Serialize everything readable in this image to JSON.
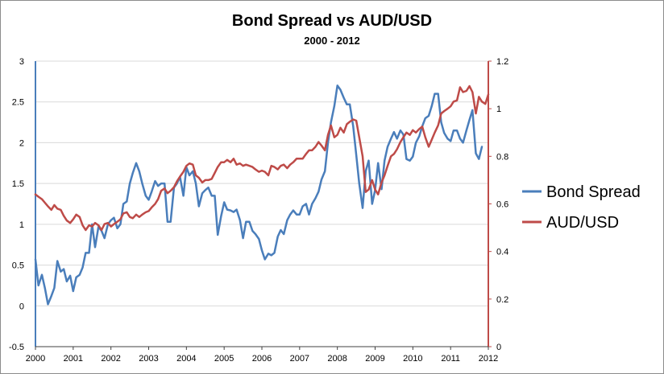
{
  "chart_data": {
    "type": "line",
    "title": "Bond Spread vs AUD/USD",
    "subtitle": "2000 - 2012",
    "x_ticks": [
      "2000",
      "2001",
      "2002",
      "2003",
      "2004",
      "2005",
      "2006",
      "2007",
      "2008",
      "2009",
      "2010",
      "2011",
      "2012"
    ],
    "xlim": [
      2000,
      2012
    ],
    "y_left": {
      "lim": [
        -0.5,
        3
      ],
      "ticks": [
        "-0.5",
        "0",
        "0.5",
        "1",
        "1.5",
        "2",
        "2.5",
        "3"
      ],
      "color": "#4a7ebb"
    },
    "y_right": {
      "lim": [
        0,
        1.2
      ],
      "ticks": [
        "0",
        "0.2",
        "0.4",
        "0.6",
        "0.8",
        "1",
        "1.2"
      ],
      "color": "#be4b48"
    },
    "grid": "horizontal",
    "legend_position": "right",
    "series": [
      {
        "name": "Bond Spread",
        "axis": "left",
        "color": "#4a7ebb",
        "points": [
          [
            2000.0,
            0.57
          ],
          [
            2000.08,
            0.25
          ],
          [
            2000.17,
            0.38
          ],
          [
            2000.25,
            0.22
          ],
          [
            2000.33,
            0.02
          ],
          [
            2000.42,
            0.12
          ],
          [
            2000.5,
            0.22
          ],
          [
            2000.58,
            0.55
          ],
          [
            2000.67,
            0.42
          ],
          [
            2000.75,
            0.45
          ],
          [
            2000.83,
            0.3
          ],
          [
            2000.92,
            0.37
          ],
          [
            2001.0,
            0.18
          ],
          [
            2001.08,
            0.35
          ],
          [
            2001.17,
            0.38
          ],
          [
            2001.25,
            0.47
          ],
          [
            2001.33,
            0.65
          ],
          [
            2001.42,
            0.65
          ],
          [
            2001.5,
            1.0
          ],
          [
            2001.58,
            0.72
          ],
          [
            2001.67,
            0.97
          ],
          [
            2001.75,
            0.92
          ],
          [
            2001.83,
            0.83
          ],
          [
            2001.92,
            1.0
          ],
          [
            2002.0,
            1.05
          ],
          [
            2002.08,
            1.08
          ],
          [
            2002.17,
            0.95
          ],
          [
            2002.25,
            1.0
          ],
          [
            2002.33,
            1.25
          ],
          [
            2002.42,
            1.28
          ],
          [
            2002.5,
            1.5
          ],
          [
            2002.58,
            1.63
          ],
          [
            2002.67,
            1.75
          ],
          [
            2002.75,
            1.65
          ],
          [
            2002.83,
            1.5
          ],
          [
            2002.92,
            1.35
          ],
          [
            2003.0,
            1.3
          ],
          [
            2003.08,
            1.4
          ],
          [
            2003.17,
            1.53
          ],
          [
            2003.25,
            1.47
          ],
          [
            2003.33,
            1.5
          ],
          [
            2003.42,
            1.5
          ],
          [
            2003.5,
            1.03
          ],
          [
            2003.58,
            1.03
          ],
          [
            2003.67,
            1.45
          ],
          [
            2003.75,
            1.5
          ],
          [
            2003.83,
            1.58
          ],
          [
            2003.92,
            1.35
          ],
          [
            2004.0,
            1.7
          ],
          [
            2004.08,
            1.6
          ],
          [
            2004.17,
            1.65
          ],
          [
            2004.25,
            1.5
          ],
          [
            2004.33,
            1.22
          ],
          [
            2004.42,
            1.38
          ],
          [
            2004.5,
            1.42
          ],
          [
            2004.58,
            1.45
          ],
          [
            2004.67,
            1.35
          ],
          [
            2004.75,
            1.35
          ],
          [
            2004.83,
            0.87
          ],
          [
            2004.92,
            1.1
          ],
          [
            2005.0,
            1.27
          ],
          [
            2005.08,
            1.18
          ],
          [
            2005.17,
            1.17
          ],
          [
            2005.25,
            1.15
          ],
          [
            2005.33,
            1.18
          ],
          [
            2005.42,
            1.05
          ],
          [
            2005.5,
            0.83
          ],
          [
            2005.58,
            1.03
          ],
          [
            2005.67,
            1.03
          ],
          [
            2005.75,
            0.92
          ],
          [
            2005.83,
            0.88
          ],
          [
            2005.92,
            0.82
          ],
          [
            2006.0,
            0.68
          ],
          [
            2006.08,
            0.57
          ],
          [
            2006.17,
            0.64
          ],
          [
            2006.25,
            0.62
          ],
          [
            2006.33,
            0.65
          ],
          [
            2006.42,
            0.85
          ],
          [
            2006.5,
            0.93
          ],
          [
            2006.58,
            0.88
          ],
          [
            2006.67,
            1.05
          ],
          [
            2006.75,
            1.12
          ],
          [
            2006.83,
            1.17
          ],
          [
            2006.92,
            1.12
          ],
          [
            2007.0,
            1.12
          ],
          [
            2007.08,
            1.22
          ],
          [
            2007.17,
            1.25
          ],
          [
            2007.25,
            1.12
          ],
          [
            2007.33,
            1.25
          ],
          [
            2007.42,
            1.32
          ],
          [
            2007.5,
            1.4
          ],
          [
            2007.58,
            1.55
          ],
          [
            2007.67,
            1.65
          ],
          [
            2007.75,
            2.0
          ],
          [
            2007.83,
            2.25
          ],
          [
            2007.92,
            2.45
          ],
          [
            2008.0,
            2.7
          ],
          [
            2008.08,
            2.65
          ],
          [
            2008.17,
            2.55
          ],
          [
            2008.25,
            2.47
          ],
          [
            2008.33,
            2.47
          ],
          [
            2008.42,
            2.2
          ],
          [
            2008.5,
            1.85
          ],
          [
            2008.58,
            1.5
          ],
          [
            2008.67,
            1.2
          ],
          [
            2008.75,
            1.65
          ],
          [
            2008.83,
            1.78
          ],
          [
            2008.92,
            1.25
          ],
          [
            2009.0,
            1.42
          ],
          [
            2009.08,
            1.75
          ],
          [
            2009.17,
            1.43
          ],
          [
            2009.25,
            1.78
          ],
          [
            2009.33,
            1.95
          ],
          [
            2009.42,
            2.05
          ],
          [
            2009.5,
            2.13
          ],
          [
            2009.58,
            2.05
          ],
          [
            2009.67,
            2.15
          ],
          [
            2009.75,
            2.1
          ],
          [
            2009.83,
            1.8
          ],
          [
            2009.92,
            1.78
          ],
          [
            2010.0,
            1.83
          ],
          [
            2010.08,
            2.0
          ],
          [
            2010.17,
            2.08
          ],
          [
            2010.25,
            2.2
          ],
          [
            2010.33,
            2.3
          ],
          [
            2010.42,
            2.33
          ],
          [
            2010.5,
            2.45
          ],
          [
            2010.58,
            2.6
          ],
          [
            2010.67,
            2.6
          ],
          [
            2010.75,
            2.25
          ],
          [
            2010.83,
            2.12
          ],
          [
            2010.92,
            2.05
          ],
          [
            2011.0,
            2.02
          ],
          [
            2011.08,
            2.15
          ],
          [
            2011.17,
            2.15
          ],
          [
            2011.25,
            2.05
          ],
          [
            2011.33,
            2.0
          ],
          [
            2011.42,
            2.15
          ],
          [
            2011.5,
            2.28
          ],
          [
            2011.58,
            2.4
          ],
          [
            2011.67,
            1.87
          ],
          [
            2011.75,
            1.8
          ],
          [
            2011.83,
            1.95
          ]
        ]
      },
      {
        "name": "AUD/USD",
        "axis": "right",
        "color": "#be4b48",
        "points": [
          [
            2000.0,
            0.64
          ],
          [
            2000.08,
            0.63
          ],
          [
            2000.17,
            0.62
          ],
          [
            2000.25,
            0.605
          ],
          [
            2000.33,
            0.59
          ],
          [
            2000.42,
            0.575
          ],
          [
            2000.5,
            0.595
          ],
          [
            2000.58,
            0.58
          ],
          [
            2000.67,
            0.575
          ],
          [
            2000.75,
            0.55
          ],
          [
            2000.83,
            0.53
          ],
          [
            2000.92,
            0.52
          ],
          [
            2001.0,
            0.535
          ],
          [
            2001.08,
            0.555
          ],
          [
            2001.17,
            0.545
          ],
          [
            2001.25,
            0.51
          ],
          [
            2001.33,
            0.49
          ],
          [
            2001.42,
            0.51
          ],
          [
            2001.5,
            0.505
          ],
          [
            2001.58,
            0.52
          ],
          [
            2001.67,
            0.51
          ],
          [
            2001.75,
            0.49
          ],
          [
            2001.83,
            0.515
          ],
          [
            2001.92,
            0.52
          ],
          [
            2002.0,
            0.505
          ],
          [
            2002.08,
            0.515
          ],
          [
            2002.17,
            0.525
          ],
          [
            2002.25,
            0.535
          ],
          [
            2002.33,
            0.56
          ],
          [
            2002.42,
            0.565
          ],
          [
            2002.5,
            0.545
          ],
          [
            2002.58,
            0.54
          ],
          [
            2002.67,
            0.555
          ],
          [
            2002.75,
            0.545
          ],
          [
            2002.83,
            0.555
          ],
          [
            2002.92,
            0.565
          ],
          [
            2003.0,
            0.57
          ],
          [
            2003.08,
            0.585
          ],
          [
            2003.17,
            0.6
          ],
          [
            2003.25,
            0.62
          ],
          [
            2003.33,
            0.655
          ],
          [
            2003.42,
            0.665
          ],
          [
            2003.5,
            0.645
          ],
          [
            2003.58,
            0.655
          ],
          [
            2003.67,
            0.67
          ],
          [
            2003.75,
            0.695
          ],
          [
            2003.83,
            0.715
          ],
          [
            2003.92,
            0.735
          ],
          [
            2004.0,
            0.76
          ],
          [
            2004.08,
            0.77
          ],
          [
            2004.17,
            0.765
          ],
          [
            2004.25,
            0.72
          ],
          [
            2004.33,
            0.71
          ],
          [
            2004.42,
            0.69
          ],
          [
            2004.5,
            0.7
          ],
          [
            2004.58,
            0.7
          ],
          [
            2004.67,
            0.705
          ],
          [
            2004.75,
            0.73
          ],
          [
            2004.83,
            0.755
          ],
          [
            2004.92,
            0.775
          ],
          [
            2005.0,
            0.775
          ],
          [
            2005.08,
            0.785
          ],
          [
            2005.17,
            0.775
          ],
          [
            2005.25,
            0.79
          ],
          [
            2005.33,
            0.765
          ],
          [
            2005.42,
            0.77
          ],
          [
            2005.5,
            0.76
          ],
          [
            2005.58,
            0.765
          ],
          [
            2005.67,
            0.76
          ],
          [
            2005.75,
            0.755
          ],
          [
            2005.83,
            0.745
          ],
          [
            2005.92,
            0.735
          ],
          [
            2006.0,
            0.74
          ],
          [
            2006.08,
            0.735
          ],
          [
            2006.17,
            0.72
          ],
          [
            2006.25,
            0.76
          ],
          [
            2006.33,
            0.755
          ],
          [
            2006.42,
            0.745
          ],
          [
            2006.5,
            0.76
          ],
          [
            2006.58,
            0.765
          ],
          [
            2006.67,
            0.75
          ],
          [
            2006.75,
            0.765
          ],
          [
            2006.83,
            0.775
          ],
          [
            2006.92,
            0.79
          ],
          [
            2007.0,
            0.79
          ],
          [
            2007.08,
            0.79
          ],
          [
            2007.17,
            0.81
          ],
          [
            2007.25,
            0.825
          ],
          [
            2007.33,
            0.825
          ],
          [
            2007.42,
            0.84
          ],
          [
            2007.5,
            0.86
          ],
          [
            2007.58,
            0.845
          ],
          [
            2007.67,
            0.825
          ],
          [
            2007.75,
            0.89
          ],
          [
            2007.83,
            0.93
          ],
          [
            2007.92,
            0.88
          ],
          [
            2008.0,
            0.89
          ],
          [
            2008.08,
            0.92
          ],
          [
            2008.17,
            0.9
          ],
          [
            2008.25,
            0.935
          ],
          [
            2008.33,
            0.945
          ],
          [
            2008.42,
            0.955
          ],
          [
            2008.5,
            0.95
          ],
          [
            2008.58,
            0.88
          ],
          [
            2008.67,
            0.8
          ],
          [
            2008.75,
            0.65
          ],
          [
            2008.83,
            0.66
          ],
          [
            2008.92,
            0.7
          ],
          [
            2009.0,
            0.66
          ],
          [
            2009.08,
            0.64
          ],
          [
            2009.17,
            0.69
          ],
          [
            2009.25,
            0.72
          ],
          [
            2009.33,
            0.76
          ],
          [
            2009.42,
            0.8
          ],
          [
            2009.5,
            0.81
          ],
          [
            2009.58,
            0.83
          ],
          [
            2009.67,
            0.86
          ],
          [
            2009.75,
            0.88
          ],
          [
            2009.83,
            0.9
          ],
          [
            2009.92,
            0.89
          ],
          [
            2010.0,
            0.91
          ],
          [
            2010.08,
            0.9
          ],
          [
            2010.17,
            0.915
          ],
          [
            2010.25,
            0.925
          ],
          [
            2010.33,
            0.88
          ],
          [
            2010.42,
            0.84
          ],
          [
            2010.5,
            0.87
          ],
          [
            2010.58,
            0.9
          ],
          [
            2010.67,
            0.93
          ],
          [
            2010.75,
            0.98
          ],
          [
            2010.83,
            0.99
          ],
          [
            2010.92,
            1.0
          ],
          [
            2011.0,
            1.01
          ],
          [
            2011.08,
            1.03
          ],
          [
            2011.17,
            1.035
          ],
          [
            2011.25,
            1.09
          ],
          [
            2011.33,
            1.07
          ],
          [
            2011.42,
            1.075
          ],
          [
            2011.5,
            1.095
          ],
          [
            2011.58,
            1.07
          ],
          [
            2011.67,
            0.98
          ],
          [
            2011.75,
            1.05
          ],
          [
            2011.83,
            1.03
          ],
          [
            2011.92,
            1.02
          ],
          [
            2012.0,
            1.06
          ]
        ]
      }
    ]
  }
}
